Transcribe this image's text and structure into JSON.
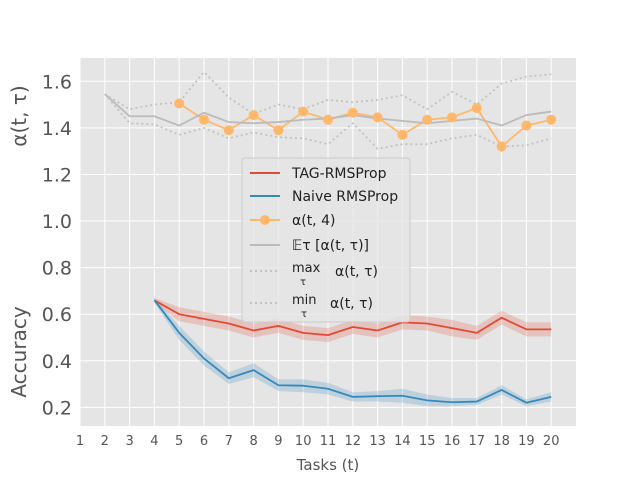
{
  "chart_data": {
    "type": "line",
    "xlabel": "Tasks (t)",
    "ylabel_top": "α(t, τ)",
    "ylabel_bottom": "Accuracy",
    "xlim": [
      1,
      21
    ],
    "ylim": [
      0.12,
      1.7
    ],
    "x_ticks": [
      1,
      2,
      3,
      4,
      5,
      6,
      7,
      8,
      9,
      10,
      11,
      12,
      13,
      14,
      15,
      16,
      17,
      18,
      19,
      20
    ],
    "y_ticks": [
      0.2,
      0.4,
      0.6,
      0.8,
      1.0,
      1.2,
      1.4,
      1.6
    ],
    "y_tick_labels": [
      "0.2",
      "0.4",
      "0.6",
      "0.8",
      "1.0",
      "1.2",
      "1.4",
      "1.6"
    ],
    "series": [
      {
        "name": "TAG-RMSProp",
        "legend_label": "TAG-RMSProp",
        "color": "#e24a33",
        "style": "line",
        "x": [
          4,
          5,
          6,
          7,
          8,
          9,
          10,
          11,
          12,
          13,
          14,
          15,
          16,
          17,
          18,
          19,
          20
        ],
        "values": [
          0.66,
          0.6,
          0.58,
          0.56,
          0.53,
          0.55,
          0.52,
          0.51,
          0.545,
          0.53,
          0.565,
          0.56,
          0.54,
          0.52,
          0.585,
          0.535,
          0.535
        ],
        "band_lower": [
          0.65,
          0.57,
          0.55,
          0.53,
          0.5,
          0.52,
          0.49,
          0.48,
          0.515,
          0.5,
          0.535,
          0.53,
          0.505,
          0.49,
          0.555,
          0.505,
          0.505
        ],
        "band_upper": [
          0.67,
          0.63,
          0.61,
          0.59,
          0.56,
          0.58,
          0.55,
          0.54,
          0.575,
          0.56,
          0.595,
          0.59,
          0.575,
          0.55,
          0.615,
          0.565,
          0.565
        ]
      },
      {
        "name": "Naive RMSProp",
        "legend_label": "Naive RMSProp",
        "color": "#348abd",
        "style": "line",
        "x": [
          4,
          5,
          6,
          7,
          8,
          9,
          10,
          11,
          12,
          13,
          14,
          15,
          16,
          17,
          18,
          19,
          20
        ],
        "values": [
          0.66,
          0.52,
          0.41,
          0.325,
          0.36,
          0.295,
          0.293,
          0.28,
          0.245,
          0.248,
          0.25,
          0.23,
          0.222,
          0.225,
          0.275,
          0.22,
          0.245
        ],
        "band_lower": [
          0.65,
          0.49,
          0.38,
          0.3,
          0.33,
          0.27,
          0.265,
          0.255,
          0.225,
          0.225,
          0.22,
          0.205,
          0.205,
          0.21,
          0.255,
          0.205,
          0.225
        ],
        "band_upper": [
          0.67,
          0.55,
          0.44,
          0.35,
          0.39,
          0.32,
          0.32,
          0.305,
          0.265,
          0.27,
          0.28,
          0.255,
          0.24,
          0.24,
          0.295,
          0.235,
          0.265
        ]
      },
      {
        "name": "alpha(t,4)",
        "legend_label": "α(t, 4)",
        "color": "#ffb86b",
        "style": "marker-line",
        "x": [
          5,
          6,
          7,
          8,
          9,
          10,
          11,
          12,
          13,
          14,
          15,
          16,
          17,
          18,
          19,
          20
        ],
        "values": [
          1.505,
          1.435,
          1.39,
          1.455,
          1.39,
          1.47,
          1.435,
          1.465,
          1.445,
          1.37,
          1.435,
          1.445,
          1.485,
          1.32,
          1.41,
          1.435
        ]
      },
      {
        "name": "E_tau alpha",
        "legend_label": "𝔼τ  [α(t, τ)]",
        "color": "#bbbbbb",
        "style": "line",
        "x": [
          2,
          3,
          4,
          5,
          6,
          7,
          8,
          9,
          10,
          11,
          12,
          13,
          14,
          15,
          16,
          17,
          18,
          19,
          20
        ],
        "values": [
          1.545,
          1.45,
          1.45,
          1.41,
          1.465,
          1.425,
          1.42,
          1.425,
          1.435,
          1.44,
          1.455,
          1.44,
          1.43,
          1.42,
          1.43,
          1.44,
          1.41,
          1.455,
          1.47
        ]
      },
      {
        "name": "max_tau alpha",
        "legend_label_op": "max",
        "legend_label_sub": "τ",
        "legend_label_rest": "α(t, τ)",
        "color": "#c2c2c2",
        "style": "dotted",
        "x": [
          2,
          3,
          4,
          5,
          6,
          7,
          8,
          9,
          10,
          11,
          12,
          13,
          14,
          15,
          16,
          17,
          18,
          19,
          20
        ],
        "values": [
          1.545,
          1.48,
          1.5,
          1.51,
          1.64,
          1.53,
          1.46,
          1.5,
          1.48,
          1.52,
          1.51,
          1.52,
          1.54,
          1.48,
          1.555,
          1.5,
          1.59,
          1.62,
          1.63
        ]
      },
      {
        "name": "min_tau alpha",
        "legend_label_op": "min",
        "legend_label_sub": "τ",
        "legend_label_rest": "α(t, τ)",
        "color": "#c2c2c2",
        "style": "dotted",
        "x": [
          2,
          3,
          4,
          5,
          6,
          7,
          8,
          9,
          10,
          11,
          12,
          13,
          14,
          15,
          16,
          17,
          18,
          19,
          20
        ],
        "values": [
          1.545,
          1.42,
          1.415,
          1.37,
          1.4,
          1.355,
          1.38,
          1.36,
          1.355,
          1.33,
          1.42,
          1.31,
          1.33,
          1.33,
          1.355,
          1.37,
          1.32,
          1.325,
          1.355
        ]
      }
    ],
    "legend_position": "center"
  }
}
